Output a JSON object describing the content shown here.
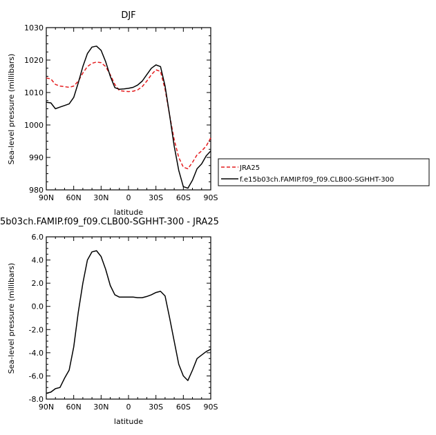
{
  "chart_data": [
    {
      "type": "line",
      "title": "DJF",
      "xlabel": "latitude",
      "ylabel": "Sea-level pressure (millibars)",
      "xlim": [
        90,
        -90
      ],
      "ylim": [
        980,
        1030
      ],
      "x_ticks": [
        "90N",
        "60N",
        "30N",
        "0",
        "30S",
        "60S",
        "90S"
      ],
      "y_ticks": [
        "980",
        "990",
        "1000",
        "1010",
        "1020",
        "1030"
      ],
      "grid": false,
      "legend": "right",
      "series": [
        {
          "name": "JRA25",
          "color": "#e41a1c",
          "dash": "dashed",
          "x": [
            90,
            85,
            80,
            75,
            70,
            65,
            60,
            55,
            50,
            45,
            40,
            35,
            30,
            25,
            20,
            15,
            10,
            5,
            0,
            -5,
            -10,
            -15,
            -20,
            -25,
            -30,
            -35,
            -40,
            -45,
            -50,
            -55,
            -60,
            -65,
            -70,
            -75,
            -80,
            -85,
            -90
          ],
          "values": [
            1014.5,
            1014.2,
            1012.5,
            1012.0,
            1011.8,
            1011.6,
            1012.0,
            1013.5,
            1016.0,
            1018.0,
            1019.0,
            1019.4,
            1019.2,
            1018.0,
            1015.5,
            1012.5,
            1010.6,
            1010.4,
            1010.3,
            1010.4,
            1010.8,
            1011.8,
            1013.5,
            1015.5,
            1017.0,
            1016.5,
            1011.0,
            1003.0,
            995.5,
            990.0,
            987.0,
            986.5,
            988.5,
            990.8,
            992.0,
            993.5,
            996.0
          ]
        },
        {
          "name": "f.e15b03ch.FAMIP.f09_f09.CLB00-SGHHT-300",
          "color": "#000000",
          "dash": "solid",
          "x": [
            90,
            85,
            80,
            75,
            70,
            65,
            60,
            55,
            50,
            45,
            40,
            35,
            30,
            25,
            20,
            15,
            10,
            5,
            0,
            -5,
            -10,
            -15,
            -20,
            -25,
            -30,
            -35,
            -40,
            -45,
            -50,
            -55,
            -60,
            -65,
            -70,
            -75,
            -80,
            -85,
            -90
          ],
          "values": [
            1007.0,
            1006.8,
            1005.0,
            1005.5,
            1006.0,
            1006.5,
            1008.5,
            1013.0,
            1018.0,
            1022.0,
            1024.0,
            1024.3,
            1023.0,
            1019.5,
            1015.0,
            1011.5,
            1011.0,
            1011.1,
            1011.3,
            1011.6,
            1012.3,
            1013.5,
            1015.5,
            1017.5,
            1018.5,
            1018.0,
            1012.0,
            1003.0,
            993.5,
            986.0,
            981.0,
            980.5,
            983.0,
            986.5,
            988.0,
            990.5,
            992.0
          ]
        }
      ]
    },
    {
      "type": "line",
      "title": "5b03ch.FAMIP.f09_f09.CLB00-SGHHT-300 - JRA25",
      "xlabel": "latitude",
      "ylabel": "Sea-level pressure (millibars)",
      "xlim": [
        90,
        -90
      ],
      "ylim": [
        -8,
        6
      ],
      "x_ticks": [
        "90N",
        "60N",
        "30N",
        "0",
        "30S",
        "60S",
        "90S"
      ],
      "y_ticks": [
        "-8.0",
        "-6.0",
        "-4.0",
        "-2.0",
        "0.0",
        "2.0",
        "4.0",
        "6.0"
      ],
      "grid": false,
      "series": [
        {
          "color": "#000000",
          "dash": "solid",
          "x": [
            90,
            85,
            80,
            75,
            70,
            65,
            60,
            55,
            50,
            45,
            40,
            35,
            30,
            25,
            20,
            15,
            10,
            5,
            0,
            -5,
            -10,
            -15,
            -20,
            -25,
            -30,
            -35,
            -40,
            -45,
            -50,
            -55,
            -60,
            -65,
            -70,
            -75,
            -80,
            -85,
            -90
          ],
          "values": [
            -7.5,
            -7.4,
            -7.1,
            -7.0,
            -6.2,
            -5.5,
            -3.5,
            -0.5,
            2.0,
            4.0,
            4.7,
            4.8,
            4.3,
            3.2,
            1.8,
            1.0,
            0.8,
            0.8,
            0.8,
            0.8,
            0.75,
            0.75,
            0.85,
            1.0,
            1.2,
            1.3,
            0.9,
            -1.0,
            -3.0,
            -5.0,
            -6.0,
            -6.4,
            -5.5,
            -4.5,
            -4.2,
            -3.9,
            -3.7
          ]
        }
      ]
    }
  ]
}
